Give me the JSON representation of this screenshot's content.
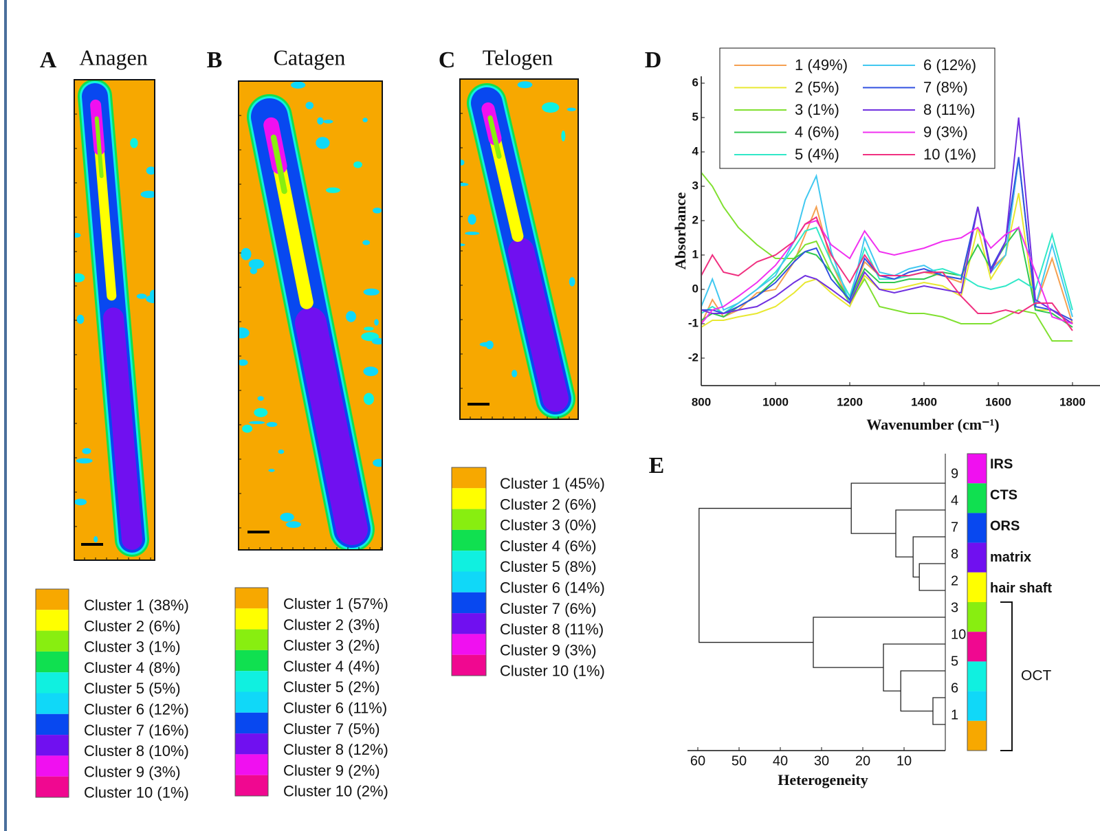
{
  "panels": [
    {
      "letter": "A",
      "title": "Anagen",
      "legend": [
        {
          "label": "Cluster 1 (38%)",
          "color": "#f7a800"
        },
        {
          "label": "Cluster 2 (6%)",
          "color": "#ffff00"
        },
        {
          "label": "Cluster 3 (1%)",
          "color": "#88ee10"
        },
        {
          "label": "Cluster 4 (8%)",
          "color": "#10e050"
        },
        {
          "label": "Cluster 5 (5%)",
          "color": "#10f0e0"
        },
        {
          "label": "Cluster 6 (12%)",
          "color": "#10d8f8"
        },
        {
          "label": "Cluster 7 (16%)",
          "color": "#0848f0"
        },
        {
          "label": "Cluster 8 (10%)",
          "color": "#7010f0"
        },
        {
          "label": "Cluster 9 (3%)",
          "color": "#f010f0"
        },
        {
          "label": "Cluster 10 (1%)",
          "color": "#f00890"
        }
      ]
    },
    {
      "letter": "B",
      "title": "Catagen",
      "legend": [
        {
          "label": "Cluster 1 (57%)",
          "color": "#f7a800"
        },
        {
          "label": "Cluster 2 (3%)",
          "color": "#ffff00"
        },
        {
          "label": "Cluster 3 (2%)",
          "color": "#88ee10"
        },
        {
          "label": "Cluster 4 (4%)",
          "color": "#10e050"
        },
        {
          "label": "Cluster 5 (2%)",
          "color": "#10f0e0"
        },
        {
          "label": "Cluster 6 (11%)",
          "color": "#10d8f8"
        },
        {
          "label": "Cluster 7 (5%)",
          "color": "#0848f0"
        },
        {
          "label": "Cluster 8 (12%)",
          "color": "#7010f0"
        },
        {
          "label": "Cluster 9 (2%)",
          "color": "#f010f0"
        },
        {
          "label": "Cluster 10 (2%)",
          "color": "#f00890"
        }
      ]
    },
    {
      "letter": "C",
      "title": "Telogen",
      "legend": [
        {
          "label": "Cluster 1 (45%)",
          "color": "#f7a800"
        },
        {
          "label": "Cluster 2 (6%)",
          "color": "#ffff00"
        },
        {
          "label": "Cluster 3 (0%)",
          "color": "#88ee10"
        },
        {
          "label": "Cluster 4 (6%)",
          "color": "#10e050"
        },
        {
          "label": "Cluster 5 (8%)",
          "color": "#10f0e0"
        },
        {
          "label": "Cluster 6 (14%)",
          "color": "#10d8f8"
        },
        {
          "label": "Cluster 7 (6%)",
          "color": "#0848f0"
        },
        {
          "label": "Cluster 8 (11%)",
          "color": "#7010f0"
        },
        {
          "label": "Cluster 9 (3%)",
          "color": "#f010f0"
        },
        {
          "label": "Cluster 10 (1%)",
          "color": "#f00890"
        }
      ]
    }
  ],
  "chart_data": {
    "type": "line",
    "letter": "D",
    "xlabel": "Wavenumber (cm⁻¹)",
    "ylabel": "Absorbance",
    "x": [
      800,
      830,
      860,
      900,
      950,
      1000,
      1050,
      1080,
      1110,
      1150,
      1200,
      1240,
      1280,
      1320,
      1360,
      1400,
      1450,
      1500,
      1545,
      1580,
      1620,
      1655,
      1700,
      1745,
      1800
    ],
    "xlim": [
      800,
      1800
    ],
    "xticks": [
      800,
      1000,
      1200,
      1400,
      1600,
      1800
    ],
    "ylim": [
      -2.8,
      6.2
    ],
    "yticks": [
      -2,
      -1,
      0,
      1,
      2,
      3,
      4,
      5,
      6
    ],
    "series": [
      {
        "name": "1 (49%)",
        "color": "#f5a050",
        "values": [
          -1,
          -0.3,
          -0.8,
          -0.6,
          -0.1,
          0,
          0.8,
          1.6,
          2.4,
          0.8,
          -0.4,
          0.8,
          0.4,
          0.3,
          0.4,
          0.5,
          0.4,
          0.2,
          2.4,
          0.6,
          1.0,
          3.8,
          -0.5,
          0.9,
          -1.0
        ]
      },
      {
        "name": "2 (5%)",
        "color": "#e8e830",
        "values": [
          -1.1,
          -0.9,
          -0.9,
          -0.8,
          -0.7,
          -0.5,
          -0.1,
          0.2,
          0.3,
          -0.1,
          -0.5,
          0.4,
          0,
          0,
          0.1,
          0.2,
          0.1,
          -0.2,
          1.8,
          0.3,
          1.0,
          2.8,
          -0.6,
          -0.6,
          -1.0
        ]
      },
      {
        "name": "3 (1%)",
        "color": "#80e030",
        "values": [
          3.4,
          3.0,
          2.4,
          1.8,
          1.3,
          0.9,
          0.9,
          1.3,
          1.4,
          0.5,
          -0.4,
          0.3,
          -0.5,
          -0.6,
          -0.7,
          -0.7,
          -0.8,
          -1.0,
          -1.0,
          -1.0,
          -0.8,
          -0.6,
          -0.7,
          -1.5,
          -1.5
        ]
      },
      {
        "name": "4 (6%)",
        "color": "#30c850",
        "values": [
          -0.9,
          -0.7,
          -0.8,
          -0.5,
          -0.2,
          0.3,
          0.9,
          1.1,
          1.0,
          0.5,
          -0.3,
          0.6,
          0.2,
          0.2,
          0.3,
          0.3,
          0.5,
          0.4,
          1.3,
          0.6,
          1.3,
          1.8,
          -0.6,
          -0.7,
          -1.1
        ]
      },
      {
        "name": "5 (4%)",
        "color": "#30e8c8",
        "values": [
          -0.7,
          -0.5,
          -0.7,
          -0.4,
          0,
          0.5,
          1.2,
          1.7,
          1.8,
          0.8,
          -0.2,
          1.2,
          0.3,
          0.3,
          0.4,
          0.5,
          0.6,
          0.4,
          0.1,
          0,
          0.1,
          0.3,
          0,
          1.6,
          -0.6
        ]
      },
      {
        "name": "6 (12%)",
        "color": "#40c8f0",
        "values": [
          -0.5,
          0.3,
          -0.6,
          -0.4,
          0,
          0.4,
          1.4,
          2.6,
          3.3,
          1.1,
          -0.4,
          1.5,
          0.5,
          0.4,
          0.6,
          0.7,
          0.4,
          0.3,
          2.4,
          0.5,
          1.0,
          3.8,
          -0.5,
          1.3,
          -0.8
        ]
      },
      {
        "name": "7 (8%)",
        "color": "#3050e0",
        "values": [
          -0.6,
          -0.6,
          -0.7,
          -0.5,
          -0.2,
          0.2,
          0.8,
          1.1,
          1.2,
          0.3,
          -0.3,
          0.9,
          0.4,
          0.3,
          0.5,
          0.6,
          0.4,
          0.3,
          2.4,
          0.6,
          1.4,
          3.85,
          -0.5,
          -0.6,
          -0.9
        ]
      },
      {
        "name": "8 (11%)",
        "color": "#7030e0",
        "values": [
          -0.6,
          -0.7,
          -0.7,
          -0.6,
          -0.5,
          -0.2,
          0.2,
          0.4,
          0.3,
          0,
          -0.4,
          0.5,
          0,
          -0.1,
          0,
          0.1,
          0,
          -0.1,
          2.4,
          0.5,
          1.4,
          5.0,
          -0.3,
          -0.6,
          -1.0
        ]
      },
      {
        "name": "9 (3%)",
        "color": "#f030f0",
        "values": [
          -1.0,
          -0.6,
          -0.5,
          -0.2,
          0.2,
          0.7,
          1.4,
          1.9,
          2.0,
          1.3,
          0.9,
          1.7,
          1.1,
          1.0,
          1.1,
          1.2,
          1.4,
          1.5,
          1.8,
          1.2,
          1.6,
          1.8,
          0.5,
          -0.8,
          -1.0
        ]
      },
      {
        "name": "10 (1%)",
        "color": "#f03080",
        "values": [
          0.4,
          1.0,
          0.5,
          0.4,
          0.8,
          1.0,
          1.4,
          1.9,
          2.1,
          1.0,
          0.2,
          1.0,
          0.4,
          0.4,
          0.4,
          0.5,
          0.5,
          -0.2,
          -0.7,
          -0.7,
          -0.6,
          -0.7,
          -0.4,
          -0.4,
          -1.2
        ]
      }
    ]
  },
  "dendrogram": {
    "letter": "E",
    "xlabel": "Heterogeneity",
    "xlim": [
      62.5,
      0
    ],
    "xticks": [
      60,
      50,
      40,
      30,
      20,
      10
    ],
    "leaves": [
      {
        "label": "9",
        "color": "#f010f0"
      },
      {
        "label": "4",
        "color": "#10e050"
      },
      {
        "label": "7",
        "color": "#0848f0"
      },
      {
        "label": "8",
        "color": "#7010f0"
      },
      {
        "label": "2",
        "color": "#ffff00"
      },
      {
        "label": "3",
        "color": "#88ee10"
      },
      {
        "label": "10",
        "color": "#f00890"
      },
      {
        "label": "5",
        "color": "#10f0e0"
      },
      {
        "label": "6",
        "color": "#10d8f8"
      },
      {
        "label": "1",
        "color": "#f7a800"
      }
    ],
    "merges": [
      {
        "leaves": [
          "8",
          "2"
        ],
        "height": 6.3
      },
      {
        "leaves": [
          "7",
          "8",
          "2"
        ],
        "height": 7.8
      },
      {
        "leaves": [
          "4",
          "7",
          "8",
          "2"
        ],
        "height": 12
      },
      {
        "leaves": [
          "9",
          "4",
          "7",
          "8",
          "2"
        ],
        "height": 22.8
      },
      {
        "leaves": [
          "6",
          "1"
        ],
        "height": 3
      },
      {
        "leaves": [
          "5",
          "6",
          "1"
        ],
        "height": 10.8
      },
      {
        "leaves": [
          "10",
          "5",
          "6",
          "1"
        ],
        "height": 15
      },
      {
        "leaves": [
          "3",
          "10",
          "5",
          "6",
          "1"
        ],
        "height": 32
      },
      {
        "leaves": [
          "9",
          "4",
          "7",
          "8",
          "2",
          "3",
          "10",
          "5",
          "6",
          "1"
        ],
        "height": 59.7
      }
    ],
    "groups": [
      {
        "label": "IRS",
        "leaves": [
          "9"
        ]
      },
      {
        "label": "CTS",
        "leaves": [
          "4"
        ]
      },
      {
        "label": "ORS",
        "leaves": [
          "7"
        ]
      },
      {
        "label": "matrix",
        "leaves": [
          "8"
        ]
      },
      {
        "label": "hair shaft",
        "leaves": [
          "2"
        ]
      },
      {
        "label": "OCT",
        "leaves": [
          "3",
          "10",
          "5",
          "6",
          "1"
        ]
      }
    ]
  }
}
